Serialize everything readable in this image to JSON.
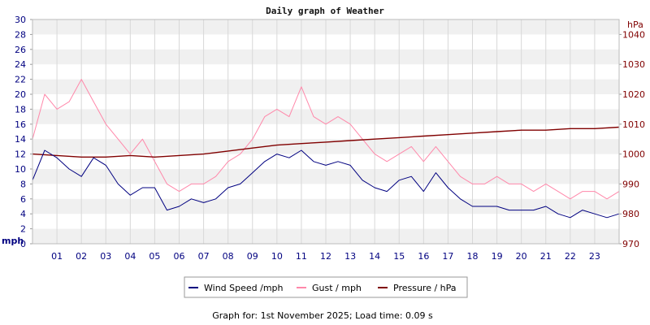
{
  "chart_data": {
    "type": "line",
    "title": "Daily graph of Weather",
    "left_axis": {
      "unit": "mph",
      "min": 0,
      "max": 30,
      "ticks": [
        0,
        2,
        4,
        6,
        8,
        10,
        12,
        14,
        16,
        18,
        20,
        22,
        24,
        26,
        28,
        30
      ]
    },
    "right_axis": {
      "unit": "hPa",
      "min": 970,
      "max": 1045,
      "ticks": [
        970,
        980,
        990,
        1000,
        1010,
        1020,
        1030,
        1040
      ]
    },
    "x_axis": {
      "min": 0,
      "max": 24,
      "tick_labels": [
        "01",
        "02",
        "03",
        "04",
        "05",
        "06",
        "07",
        "08",
        "09",
        "10",
        "11",
        "12",
        "13",
        "14",
        "15",
        "16",
        "17",
        "18",
        "19",
        "20",
        "21",
        "22",
        "23"
      ]
    },
    "grid": true,
    "legend_position": "bottom",
    "series": [
      {
        "name": "Wind Speed /mph",
        "axis": "left",
        "color": "#000080",
        "x": [
          0,
          0.5,
          1,
          1.5,
          2,
          2.5,
          3,
          3.5,
          4,
          4.5,
          5,
          5.5,
          6,
          6.5,
          7,
          7.5,
          8,
          8.5,
          9,
          9.5,
          10,
          10.5,
          11,
          11.5,
          12,
          12.5,
          13,
          13.5,
          14,
          14.5,
          15,
          15.5,
          16,
          16.5,
          17,
          17.5,
          18,
          18.5,
          19,
          19.5,
          20,
          20.5,
          21,
          21.5,
          22,
          22.5,
          23,
          23.5,
          24
        ],
        "values": [
          8.5,
          12.5,
          11.5,
          10,
          9,
          11.5,
          10.5,
          8,
          6.5,
          7.5,
          7.5,
          4.5,
          5,
          6,
          5.5,
          6,
          7.5,
          8,
          9.5,
          11,
          12,
          11.5,
          12.5,
          11,
          10.5,
          11,
          10.5,
          8.5,
          7.5,
          7,
          8.5,
          9,
          7,
          9.5,
          7.5,
          6,
          5,
          5,
          5,
          4.5,
          4.5,
          4.5,
          5,
          4,
          3.5,
          4.5,
          4,
          3.5,
          4
        ]
      },
      {
        "name": "Gust / mph",
        "axis": "left",
        "color": "#ff88aa",
        "x": [
          0,
          0.5,
          1,
          1.5,
          2,
          2.5,
          3,
          3.5,
          4,
          4.5,
          5,
          5.5,
          6,
          6.5,
          7,
          7.5,
          8,
          8.5,
          9,
          9.5,
          10,
          10.5,
          11,
          11.5,
          12,
          12.5,
          13,
          13.5,
          14,
          14.5,
          15,
          15.5,
          16,
          16.5,
          17,
          17.5,
          18,
          18.5,
          19,
          19.5,
          20,
          20.5,
          21,
          21.5,
          22,
          22.5,
          23,
          23.5,
          24
        ],
        "values": [
          14,
          20,
          18,
          19,
          22,
          19,
          16,
          14,
          12,
          14,
          11,
          8,
          7,
          8,
          8,
          9,
          11,
          12,
          14,
          17,
          18,
          17,
          21,
          17,
          16,
          17,
          16,
          14,
          12,
          11,
          12,
          13,
          11,
          13,
          11,
          9,
          8,
          8,
          9,
          8,
          8,
          7,
          8,
          7,
          6,
          7,
          7,
          6,
          7
        ]
      },
      {
        "name": "Pressure / hPa",
        "axis": "right",
        "color": "#800000",
        "x": [
          0,
          1,
          2,
          3,
          4,
          5,
          6,
          7,
          8,
          9,
          10,
          11,
          12,
          13,
          14,
          15,
          16,
          17,
          18,
          19,
          20,
          21,
          22,
          23,
          24
        ],
        "values": [
          1000,
          999.5,
          999,
          999,
          999.5,
          999,
          999.5,
          1000,
          1001,
          1002,
          1003,
          1003.5,
          1004,
          1004.5,
          1005,
          1005.5,
          1006,
          1006.5,
          1007,
          1007.5,
          1008,
          1008,
          1008.5,
          1008.5,
          1009
        ]
      }
    ]
  },
  "footer": "Graph for: 1st November 2025; Load time: 0.09 s"
}
